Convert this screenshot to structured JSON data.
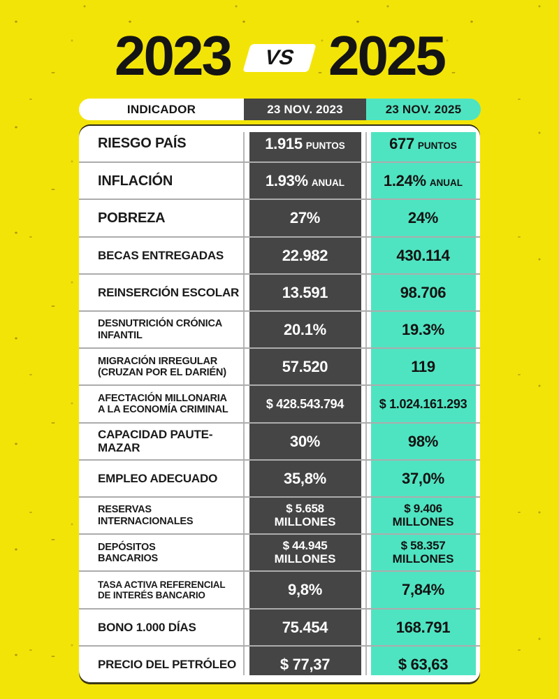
{
  "title": {
    "year_left": "2023",
    "vs": "VS",
    "year_right": "2025"
  },
  "colors": {
    "background_yellow": "#F3E408",
    "column_2023_dark": "#454545",
    "column_2025_teal": "#4FE4C1",
    "card_white": "#FFFFFF",
    "text_black": "#141414",
    "separator_gray": "#ACACAC"
  },
  "table": {
    "headers": [
      {
        "label": "INDICADOR"
      },
      {
        "label": "23 NOV. 2023"
      },
      {
        "label": "23 NOV. 2025"
      }
    ],
    "rows": [
      {
        "indicator": "RIESGO PAÍS",
        "v2023": "1.915",
        "u2023": "PUNTOS",
        "v2025": "677",
        "u2025": "PUNTOS"
      },
      {
        "indicator": "INFLACIÓN",
        "v2023": "1.93%",
        "u2023": "ANUAL",
        "v2025": "1.24%",
        "u2025": "ANUAL"
      },
      {
        "indicator": "POBREZA",
        "v2023": "27%",
        "v2025": "24%"
      },
      {
        "indicator": "BECAS ENTREGADAS",
        "v2023": "22.982",
        "v2025": "430.114"
      },
      {
        "indicator": "REINSERCIÓN ESCOLAR",
        "v2023": "13.591",
        "v2025": "98.706"
      },
      {
        "indicator": "DESNUTRICIÓN CRÓNICA\nINFANTIL",
        "v2023": "20.1%",
        "v2025": "19.3%"
      },
      {
        "indicator": "MIGRACIÓN IRREGULAR\n(CRUZAN POR EL DARIÉN)",
        "v2023": "57.520",
        "v2025": "119"
      },
      {
        "indicator": "AFECTACIÓN MILLONARIA\nA LA ECONOMÍA CRIMINAL",
        "v2023": "$ 428.543.794",
        "v2025": "$ 1.024.161.293"
      },
      {
        "indicator": "CAPACIDAD PAUTE-MAZAR",
        "v2023": "30%",
        "v2025": "98%"
      },
      {
        "indicator": "EMPLEO ADECUADO",
        "v2023": "35,8%",
        "v2025": "37,0%"
      },
      {
        "indicator": "RESERVAS\nINTERNACIONALES",
        "v2023": "$ 5.658",
        "sub2023": "MILLONES",
        "v2025": "$ 9.406",
        "sub2025": "MILLONES"
      },
      {
        "indicator": "DEPÓSITOS\nBANCARIOS",
        "v2023": "$ 44.945",
        "sub2023": "MILLONES",
        "v2025": "$ 58.357",
        "sub2025": "MILLONES"
      },
      {
        "indicator": "TASA ACTIVA REFERENCIAL\nDE INTERÉS BANCARIO",
        "v2023": "9,8%",
        "v2025": "7,84%"
      },
      {
        "indicator": "BONO 1.000 DÍAS",
        "v2023": "75.454",
        "v2025": "168.791"
      },
      {
        "indicator": "PRECIO DEL PETRÓLEO",
        "v2023": "$ 77,37",
        "v2025": "$ 63,63"
      }
    ]
  },
  "chart_data": {
    "type": "table",
    "title": "2023 VS 2025",
    "categories": [
      "RIESGO PAÍS",
      "INFLACIÓN",
      "POBREZA",
      "BECAS ENTREGADAS",
      "REINSERCIÓN ESCOLAR",
      "DESNUTRICIÓN CRÓNICA INFANTIL",
      "MIGRACIÓN IRREGULAR (CRUZAN POR EL DARIÉN)",
      "AFECTACIÓN MILLONARIA A LA ECONOMÍA CRIMINAL",
      "CAPACIDAD PAUTE-MAZAR",
      "EMPLEO ADECUADO",
      "RESERVAS INTERNACIONALES",
      "DEPÓSITOS BANCARIOS",
      "TASA ACTIVA REFERENCIAL DE INTERÉS BANCARIO",
      "BONO 1.000 DÍAS",
      "PRECIO DEL PETRÓLEO"
    ],
    "series": [
      {
        "name": "23 NOV. 2023",
        "values": [
          "1.915 PUNTOS",
          "1.93% ANUAL",
          "27%",
          "22.982",
          "13.591",
          "20.1%",
          "57.520",
          "$ 428.543.794",
          "30%",
          "35,8%",
          "$ 5.658 MILLONES",
          "$ 44.945 MILLONES",
          "9,8%",
          "75.454",
          "$ 77,37"
        ]
      },
      {
        "name": "23 NOV. 2025",
        "values": [
          "677 PUNTOS",
          "1.24% ANUAL",
          "24%",
          "430.114",
          "98.706",
          "19.3%",
          "119",
          "$ 1.024.161.293",
          "98%",
          "37,0%",
          "$ 9.406 MILLONES",
          "$ 58.357 MILLONES",
          "7,84%",
          "168.791",
          "$ 63,63"
        ]
      }
    ]
  }
}
